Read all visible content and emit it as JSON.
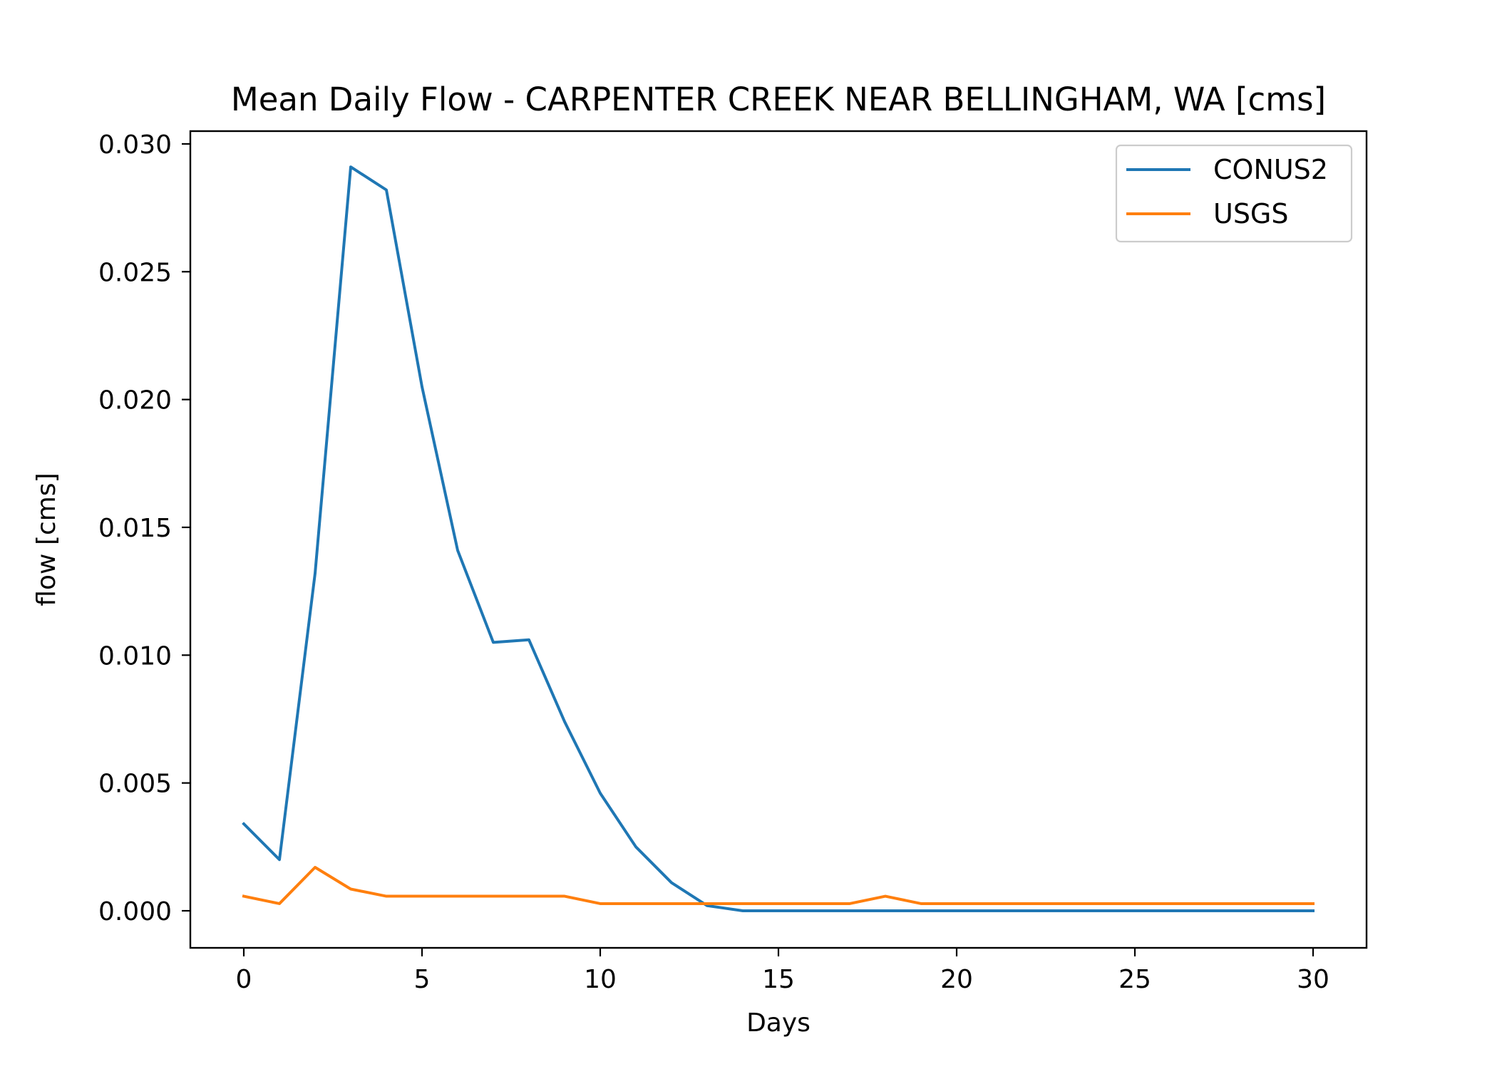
{
  "chart_data": {
    "type": "line",
    "title": "Mean Daily Flow - CARPENTER CREEK NEAR BELLINGHAM, WA [cms]",
    "xlabel": "Days",
    "ylabel": "flow [cms]",
    "xlim": [
      -1.5,
      31.5
    ],
    "ylim": [
      -0.00145,
      0.0305
    ],
    "xticks": [
      0,
      5,
      10,
      15,
      20,
      25,
      30
    ],
    "xtick_labels": [
      "0",
      "5",
      "10",
      "15",
      "20",
      "25",
      "30"
    ],
    "yticks": [
      0,
      0.005,
      0.01,
      0.015,
      0.02,
      0.025,
      0.03
    ],
    "ytick_labels": [
      "0.000",
      "0.005",
      "0.010",
      "0.015",
      "0.020",
      "0.025",
      "0.030"
    ],
    "grid": false,
    "legend_position": "upper right",
    "x": [
      0,
      1,
      2,
      3,
      4,
      5,
      6,
      7,
      8,
      9,
      10,
      11,
      12,
      13,
      14,
      15,
      16,
      17,
      18,
      19,
      20,
      21,
      22,
      23,
      24,
      25,
      26,
      27,
      28,
      29,
      30
    ],
    "series": [
      {
        "name": "CONUS2",
        "color": "#1f77b4",
        "values": [
          0.0034,
          0.002,
          0.0132,
          0.0291,
          0.0282,
          0.0205,
          0.0141,
          0.0105,
          0.0106,
          0.0074,
          0.0046,
          0.0025,
          0.0011,
          0.0002,
          0.0,
          0.0,
          0.0,
          0.0,
          0.0,
          0.0,
          0.0,
          0.0,
          0.0,
          0.0,
          0.0,
          0.0,
          0.0,
          0.0,
          0.0,
          0.0,
          0.0
        ]
      },
      {
        "name": "USGS",
        "color": "#ff7f0e",
        "values": [
          0.00057,
          0.00028,
          0.0017,
          0.00085,
          0.00057,
          0.00057,
          0.00057,
          0.00057,
          0.00057,
          0.00057,
          0.00028,
          0.00028,
          0.00028,
          0.00028,
          0.00028,
          0.00028,
          0.00028,
          0.00028,
          0.00057,
          0.00028,
          0.00028,
          0.00028,
          0.00028,
          0.00028,
          0.00028,
          0.00028,
          0.00028,
          0.00028,
          0.00028,
          0.00028,
          0.00028
        ]
      }
    ]
  }
}
